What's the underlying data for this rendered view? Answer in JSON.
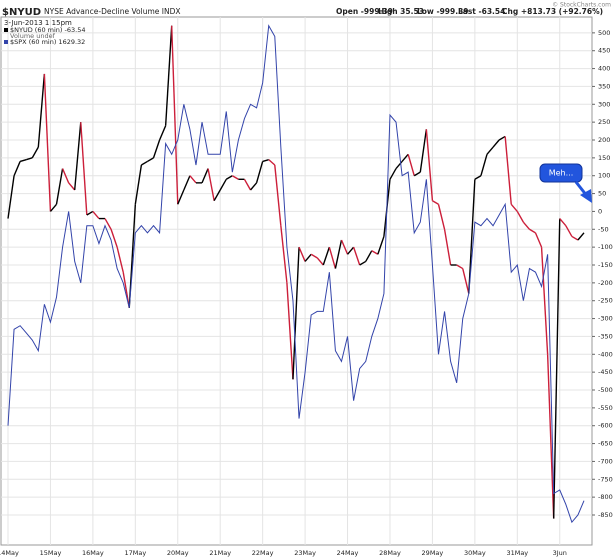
{
  "chart_data": {
    "type": "line",
    "symbol": "$NYUD",
    "title": "NYSE Advance-Decline Volume INDX",
    "date": "3-Jun-2013 1:15pm",
    "copyright": "© StockCharts.com",
    "quote": [
      "Open -999.39",
      "High 35.53",
      "Low -999.39",
      "Last -63.54",
      "Chg +813.73 (+92.76%)"
    ],
    "legend_extra": "Volume undef",
    "annotation": "Meh...",
    "categories": [
      "14May",
      null,
      null,
      null,
      null,
      null,
      null,
      "15May",
      null,
      null,
      null,
      null,
      null,
      null,
      "16May",
      null,
      null,
      null,
      null,
      null,
      null,
      "17May",
      null,
      null,
      null,
      null,
      null,
      null,
      "20May",
      null,
      null,
      null,
      null,
      null,
      null,
      "21May",
      null,
      null,
      null,
      null,
      null,
      null,
      "22May",
      null,
      null,
      null,
      null,
      null,
      null,
      "23May",
      null,
      null,
      null,
      null,
      null,
      null,
      "24May",
      null,
      null,
      null,
      null,
      null,
      null,
      "28May",
      null,
      null,
      null,
      null,
      null,
      null,
      "29May",
      null,
      null,
      null,
      null,
      null,
      null,
      "30May",
      null,
      null,
      null,
      null,
      null,
      null,
      "31May",
      null,
      null,
      null,
      null,
      null,
      null,
      "3Jun",
      null,
      null,
      null,
      null
    ],
    "series": [
      {
        "name": "$NYUD (60 min) -63.54",
        "up_color": "#000000",
        "down_color": "#cc1f3a",
        "values": [
          -20,
          100,
          140,
          145,
          150,
          180,
          385,
          0,
          20,
          120,
          80,
          60,
          250,
          -10,
          0,
          -20,
          -20,
          -50,
          -100,
          -170,
          -270,
          20,
          130,
          140,
          150,
          200,
          240,
          520,
          20,
          60,
          100,
          80,
          80,
          120,
          30,
          60,
          90,
          100,
          90,
          90,
          60,
          80,
          140,
          145,
          130,
          -40,
          -200,
          -470,
          -100,
          -140,
          -120,
          -130,
          -150,
          -100,
          -160,
          -80,
          -120,
          -100,
          -150,
          -140,
          -110,
          -120,
          -70,
          90,
          120,
          140,
          160,
          100,
          110,
          230,
          30,
          20,
          -50,
          -150,
          -150,
          -160,
          -230,
          90,
          100,
          160,
          180,
          200,
          210,
          20,
          0,
          -30,
          -50,
          -60,
          -100,
          -400,
          -860,
          -20,
          -40,
          -70,
          -80,
          -60
        ]
      },
      {
        "name": "$SPX (60 min) 1629.32",
        "color": "#3344aa",
        "axis": "y2",
        "values": [
          1640,
          1653.5,
          1654,
          1653,
          1652,
          1650.5,
          1657,
          1654.5,
          1658,
          1665,
          1670,
          1663,
          1660,
          1668,
          1668,
          1665.5,
          1668,
          1666,
          1662,
          1660,
          1656.5,
          1667,
          1668,
          1667,
          1668,
          1667,
          1679.5,
          1678,
          1680,
          1685,
          1681.5,
          1676.5,
          1682.5,
          1678,
          1678,
          1678,
          1684,
          1675.5,
          1680,
          1683,
          1685,
          1684.5,
          1688,
          1696,
          1694.5,
          1679,
          1665,
          1657.5,
          1641,
          1647.5,
          1655.5,
          1656,
          1656,
          1661.5,
          1650.5,
          1649,
          1652.5,
          1643.5,
          1648,
          1649,
          1652.5,
          1655,
          1658.5,
          1683.5,
          1682.5,
          1675,
          1675.5,
          1667,
          1668.5,
          1674.5,
          1662.5,
          1650,
          1656,
          1649,
          1646,
          1655,
          1658.5,
          1668.5,
          1668,
          1669,
          1668,
          1669.5,
          1671,
          1661.5,
          1662.5,
          1657.5,
          1662,
          1661.5,
          1659.5,
          1664,
          1630.5,
          1631,
          1629,
          1626.5,
          1627.5,
          1629.5
        ]
      }
    ],
    "ylim": [
      -934,
      536
    ],
    "yticks": [
      500,
      450,
      400,
      350,
      300,
      250,
      200,
      150,
      100,
      50,
      0,
      -50,
      -100,
      -150,
      -200,
      -250,
      -300,
      -350,
      -400,
      -450,
      -500,
      -550,
      -600,
      -650,
      -700,
      -750,
      -800,
      -850
    ],
    "y2lim": [
      1623.3,
      1696.8
    ],
    "grid": true
  }
}
